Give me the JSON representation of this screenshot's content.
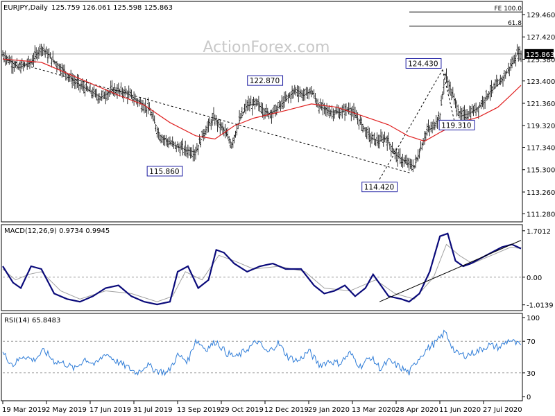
{
  "header": {
    "symbol": "EURJPY,Daily",
    "ohlc": "125.759 126.061 125.598 125.863",
    "watermark": "ActionForex.com"
  },
  "colors": {
    "bars": "#1a1a1a",
    "sma": "#e02020",
    "macd": "#0a0a7a",
    "signal": "#a0a0a0",
    "rsi": "#2f7dd8",
    "trendline": "#000000",
    "price_tag_bg": "#000000"
  },
  "chart_data": [
    {
      "type": "ohlc",
      "panel": "price",
      "ylim": [
        110.6,
        130.6
      ],
      "y_ticks": [
        "129.460",
        "127.420",
        "125.380",
        "123.400",
        "121.360",
        "119.320",
        "117.340",
        "115.300",
        "113.260",
        "111.280"
      ],
      "y_tick_values": [
        129.46,
        127.42,
        125.38,
        123.4,
        121.36,
        119.32,
        117.34,
        115.3,
        113.26,
        111.28
      ],
      "last_price": "125.863",
      "x_tick_labels": [
        "19 Mar 2019",
        "2 May 2019",
        "17 Jun 2019",
        "31 Jul 2019",
        "13 Sep 2019",
        "29 Oct 2019",
        "12 Dec 2019",
        "29 Jan 2020",
        "13 Mar 2020",
        "28 Apr 2020",
        "11 Jun 2020",
        "27 Jul 2020"
      ],
      "close_path": [
        [
          0,
          125.8
        ],
        [
          12,
          124.6
        ],
        [
          22,
          125.1
        ],
        [
          30,
          126.5
        ],
        [
          38,
          125.4
        ],
        [
          46,
          124.5
        ],
        [
          56,
          123.3
        ],
        [
          66,
          122.6
        ],
        [
          76,
          121.9
        ],
        [
          86,
          122.6
        ],
        [
          96,
          122.3
        ],
        [
          106,
          121.5
        ],
        [
          114,
          120.8
        ],
        [
          122,
          118.4
        ],
        [
          132,
          117.6
        ],
        [
          142,
          117.1
        ],
        [
          150,
          116.9
        ],
        [
          156,
          118.6
        ],
        [
          164,
          120.0
        ],
        [
          172,
          118.9
        ],
        [
          178,
          117.6
        ],
        [
          184,
          119.8
        ],
        [
          190,
          121.2
        ],
        [
          198,
          121.3
        ],
        [
          206,
          120.4
        ],
        [
          212,
          120.7
        ],
        [
          220,
          121.7
        ],
        [
          228,
          122.6
        ],
        [
          234,
          122.1
        ],
        [
          240,
          122.5
        ],
        [
          246,
          121.1
        ],
        [
          254,
          120.6
        ],
        [
          262,
          120.5
        ],
        [
          270,
          120.9
        ],
        [
          278,
          119.6
        ],
        [
          286,
          118.2
        ],
        [
          292,
          117.9
        ],
        [
          298,
          118.2
        ],
        [
          306,
          116.6
        ],
        [
          314,
          115.9
        ],
        [
          320,
          115.6
        ],
        [
          326,
          117.6
        ],
        [
          330,
          118.9
        ],
        [
          334,
          119.1
        ],
        [
          340,
          120.3
        ],
        [
          344,
          124.0
        ],
        [
          350,
          122.0
        ],
        [
          356,
          120.2
        ],
        [
          362,
          120.4
        ],
        [
          370,
          121.0
        ],
        [
          378,
          122.3
        ],
        [
          386,
          123.2
        ],
        [
          392,
          124.2
        ],
        [
          396,
          125.0
        ],
        [
          400,
          125.9
        ],
        [
          403,
          125.86
        ]
      ],
      "sma_path": [
        [
          0,
          125.4
        ],
        [
          30,
          125.1
        ],
        [
          60,
          123.6
        ],
        [
          90,
          122.1
        ],
        [
          110,
          121.2
        ],
        [
          130,
          119.6
        ],
        [
          150,
          118.4
        ],
        [
          165,
          118.1
        ],
        [
          180,
          119.3
        ],
        [
          195,
          120.0
        ],
        [
          220,
          120.7
        ],
        [
          240,
          121.3
        ],
        [
          260,
          121.0
        ],
        [
          280,
          120.2
        ],
        [
          300,
          119.4
        ],
        [
          315,
          118.4
        ],
        [
          328,
          117.9
        ],
        [
          340,
          118.7
        ],
        [
          355,
          119.6
        ],
        [
          370,
          120.1
        ],
        [
          385,
          121.0
        ],
        [
          395,
          122.1
        ],
        [
          403,
          123.0
        ]
      ],
      "sma_label": "",
      "dashed_trendline": [
        [
          0,
          125.4
        ],
        [
          317,
          115.0
        ]
      ],
      "retrace_lines": [
        {
          "from": [
            293,
            114.42
          ],
          "to": [
            342,
            124.43
          ]
        },
        {
          "from": [
            342,
            124.43
          ],
          "to": [
            352,
            119.31
          ]
        }
      ],
      "fib_levels": [
        {
          "label": "FE 100.0",
          "value": 129.7
        },
        {
          "label": "61.8",
          "value": 128.4
        }
      ],
      "annotations": [
        {
          "text": "115.860",
          "x": 126,
          "y": 115.86
        },
        {
          "text": "122.870",
          "x": 204,
          "y": 122.87
        },
        {
          "text": "114.420",
          "x": 293,
          "y": 114.42
        },
        {
          "text": "124.430",
          "x": 342,
          "y": 124.43
        },
        {
          "text": "119.310",
          "x": 352,
          "y": 119.31
        }
      ]
    },
    {
      "type": "line",
      "panel": "macd",
      "title": "MACD(12,26,9) 0.9734 0.9945",
      "ylim": [
        -1.2,
        1.9
      ],
      "y_ticks": [
        "1.7012",
        "0.00",
        "-1.0139"
      ],
      "y_tick_values": [
        1.7012,
        0.0,
        -1.0139
      ],
      "macd_path": [
        [
          0,
          0.4
        ],
        [
          8,
          -0.2
        ],
        [
          14,
          -0.4
        ],
        [
          22,
          0.4
        ],
        [
          30,
          0.3
        ],
        [
          40,
          -0.6
        ],
        [
          50,
          -0.8
        ],
        [
          60,
          -0.9
        ],
        [
          70,
          -0.7
        ],
        [
          80,
          -0.4
        ],
        [
          90,
          -0.3
        ],
        [
          100,
          -0.7
        ],
        [
          110,
          -0.9
        ],
        [
          120,
          -1.0
        ],
        [
          130,
          -0.9
        ],
        [
          136,
          0.2
        ],
        [
          144,
          0.4
        ],
        [
          152,
          -0.4
        ],
        [
          160,
          -0.1
        ],
        [
          166,
          1.0
        ],
        [
          172,
          0.9
        ],
        [
          180,
          0.5
        ],
        [
          190,
          0.2
        ],
        [
          200,
          0.4
        ],
        [
          210,
          0.5
        ],
        [
          220,
          0.3
        ],
        [
          232,
          0.3
        ],
        [
          242,
          -0.3
        ],
        [
          250,
          -0.6
        ],
        [
          258,
          -0.5
        ],
        [
          266,
          -0.3
        ],
        [
          274,
          -0.7
        ],
        [
          282,
          -0.4
        ],
        [
          288,
          0.1
        ],
        [
          294,
          -0.3
        ],
        [
          300,
          -0.7
        ],
        [
          310,
          -0.8
        ],
        [
          316,
          -0.9
        ],
        [
          324,
          -0.6
        ],
        [
          332,
          0.2
        ],
        [
          340,
          1.5
        ],
        [
          346,
          1.6
        ],
        [
          352,
          0.6
        ],
        [
          358,
          0.4
        ],
        [
          364,
          0.5
        ],
        [
          372,
          0.7
        ],
        [
          380,
          0.9
        ],
        [
          388,
          1.1
        ],
        [
          396,
          1.2
        ],
        [
          403,
          1.05
        ]
      ],
      "signal_path": [
        [
          0,
          0.3
        ],
        [
          10,
          -0.1
        ],
        [
          20,
          0.1
        ],
        [
          30,
          0.2
        ],
        [
          45,
          -0.5
        ],
        [
          60,
          -0.8
        ],
        [
          80,
          -0.5
        ],
        [
          100,
          -0.6
        ],
        [
          120,
          -0.9
        ],
        [
          132,
          -0.7
        ],
        [
          142,
          0.2
        ],
        [
          155,
          -0.1
        ],
        [
          168,
          0.8
        ],
        [
          180,
          0.6
        ],
        [
          195,
          0.3
        ],
        [
          215,
          0.4
        ],
        [
          235,
          0.2
        ],
        [
          250,
          -0.4
        ],
        [
          270,
          -0.5
        ],
        [
          290,
          -0.1
        ],
        [
          305,
          -0.6
        ],
        [
          320,
          -0.8
        ],
        [
          335,
          0.0
        ],
        [
          345,
          1.2
        ],
        [
          355,
          0.8
        ],
        [
          365,
          0.5
        ],
        [
          380,
          0.8
        ],
        [
          395,
          1.1
        ],
        [
          403,
          1.05
        ]
      ],
      "trendline": [
        [
          293,
          -0.9
        ],
        [
          403,
          1.35
        ]
      ]
    },
    {
      "type": "line",
      "panel": "rsi",
      "title": "RSI(14) 65.8483",
      "ylim": [
        0,
        100
      ],
      "y_ticks": [
        "100",
        "70",
        "30",
        "0"
      ],
      "y_tick_values": [
        100,
        70,
        30,
        0
      ],
      "levels": [
        70,
        30
      ],
      "rsi_path": [
        [
          0,
          55
        ],
        [
          8,
          40
        ],
        [
          16,
          52
        ],
        [
          24,
          46
        ],
        [
          32,
          58
        ],
        [
          40,
          45
        ],
        [
          48,
          42
        ],
        [
          56,
          35
        ],
        [
          64,
          48
        ],
        [
          72,
          40
        ],
        [
          80,
          55
        ],
        [
          88,
          45
        ],
        [
          96,
          38
        ],
        [
          104,
          30
        ],
        [
          112,
          40
        ],
        [
          120,
          33
        ],
        [
          128,
          30
        ],
        [
          136,
          52
        ],
        [
          144,
          45
        ],
        [
          150,
          72
        ],
        [
          158,
          60
        ],
        [
          166,
          70
        ],
        [
          174,
          55
        ],
        [
          182,
          50
        ],
        [
          190,
          60
        ],
        [
          198,
          70
        ],
        [
          206,
          55
        ],
        [
          214,
          68
        ],
        [
          222,
          50
        ],
        [
          230,
          45
        ],
        [
          238,
          58
        ],
        [
          246,
          40
        ],
        [
          254,
          45
        ],
        [
          262,
          42
        ],
        [
          270,
          55
        ],
        [
          278,
          38
        ],
        [
          286,
          50
        ],
        [
          294,
          35
        ],
        [
          300,
          45
        ],
        [
          308,
          38
        ],
        [
          316,
          30
        ],
        [
          324,
          50
        ],
        [
          330,
          60
        ],
        [
          338,
          70
        ],
        [
          344,
          82
        ],
        [
          352,
          55
        ],
        [
          360,
          52
        ],
        [
          370,
          58
        ],
        [
          378,
          65
        ],
        [
          386,
          62
        ],
        [
          394,
          72
        ],
        [
          400,
          66
        ],
        [
          403,
          65.85
        ]
      ]
    }
  ]
}
